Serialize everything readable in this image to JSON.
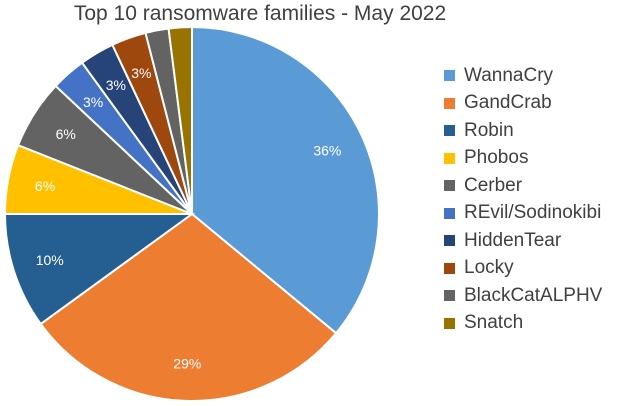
{
  "chart_data": {
    "type": "pie",
    "title": "Top 10 ransomware families - May 2022",
    "categories": [
      "WannaCry",
      "GandCrab",
      "Robin",
      "Phobos",
      "Cerber",
      "REvil/Sodinokibi",
      "HiddenTear",
      "Locky",
      "BlackCatALPHV",
      "Snatch"
    ],
    "values": [
      36,
      29,
      10,
      6,
      6,
      3,
      3,
      3,
      2,
      2
    ],
    "data_labels": [
      "36%",
      "29%",
      "10%",
      "6%",
      "6%",
      "3%",
      "3%",
      "3%",
      "",
      ""
    ],
    "colors": [
      "#5B9BD5",
      "#ED7D31",
      "#255E91",
      "#FFC000",
      "#636363",
      "#4472C4",
      "#264478",
      "#9E480E",
      "#636363",
      "#997300"
    ],
    "legend_position": "right"
  }
}
